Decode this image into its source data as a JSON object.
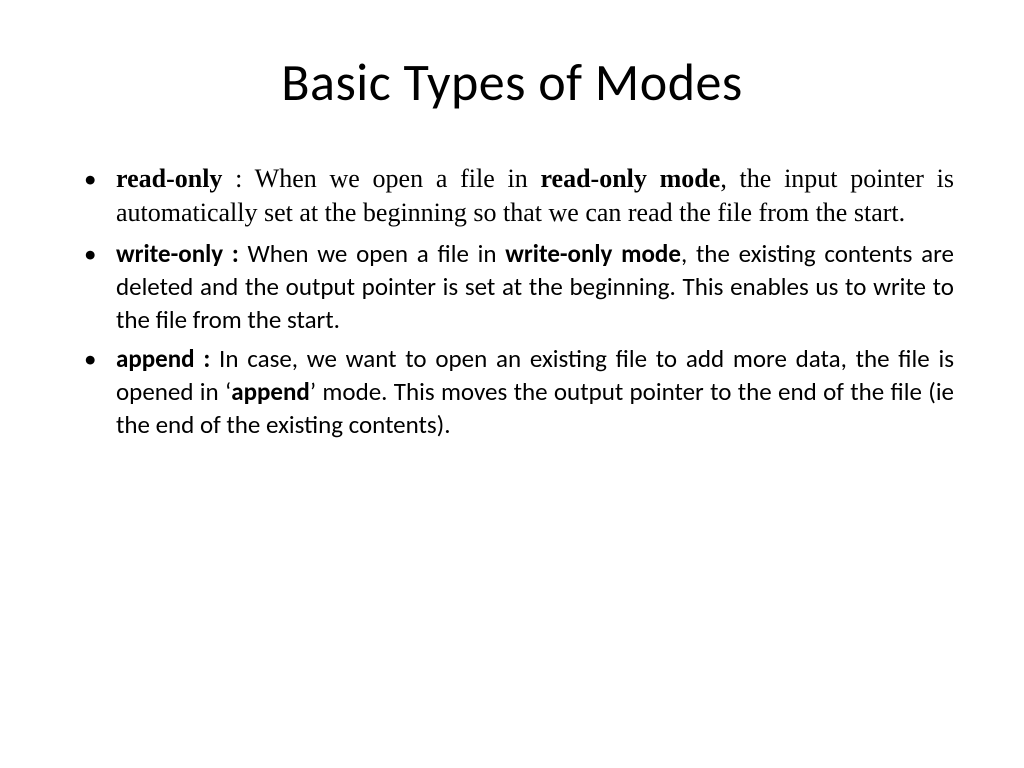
{
  "title": "Basic Types of Modes",
  "text_color": "#000000",
  "background_color": "#ffffff",
  "title_fontsize": 52,
  "body_fontsize": 25,
  "bullets": {
    "b1": {
      "lead": "read-only",
      "font": "serif",
      "t1": " : When we open a file in ",
      "k1": "read-only mode",
      "t2": ", the input pointer is automatically set at the beginning so that we can read the file from the start."
    },
    "b2": {
      "lead": "write-only :",
      "font": "sans",
      "t1": " When we open a file in ",
      "k1": "write-only mode",
      "t2": ", the existing contents are deleted and the output pointer  is set at the beginning.   This enables us to write to the file from the start."
    },
    "b3": {
      "lead": " append :",
      "font": "sans",
      "t1": " In case, we want to open an existing file to add more data, the file is opened in ‘",
      "k1": "append",
      "t2": "’ mode. This moves the output pointer to the end of the file (ie the end of the existing contents)."
    }
  }
}
